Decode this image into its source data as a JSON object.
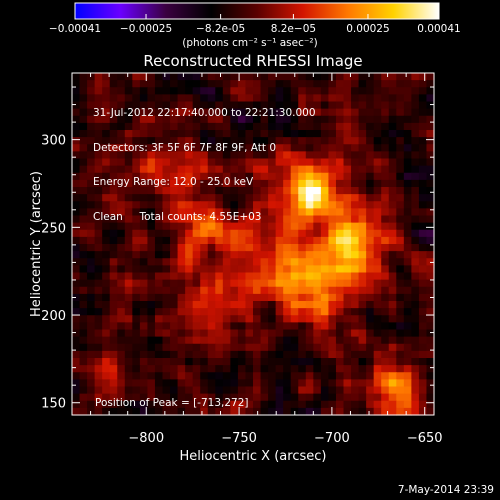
{
  "colorbar": {
    "tick_labels": [
      "-0.00041",
      "-0.00025",
      "-8.2e-05",
      "8.2e-05",
      "0.00025",
      "0.00041"
    ],
    "range": [
      -0.00041,
      0.00041
    ],
    "unit_label": "(photons cm⁻² s⁻¹ asec⁻²)",
    "colors": [
      "#0000ff",
      "#6a00ff",
      "#3a0040",
      "#000000",
      "#5a0000",
      "#d21400",
      "#ff7800",
      "#ffd200",
      "#ffffff"
    ]
  },
  "chart_data": {
    "type": "heatmap",
    "title": "Reconstructed RHESSI Image",
    "xlabel": "Heliocentric X (arcsec)",
    "ylabel": "Heliocentric Y (arcsec)",
    "xlim": [
      -840,
      -645
    ],
    "ylim": [
      143,
      338
    ],
    "xticks": [
      -800,
      -750,
      -700,
      -650
    ],
    "yticks": [
      150,
      200,
      250,
      300
    ],
    "xtick_labels": [
      "−800",
      "−750",
      "−700",
      "−650"
    ],
    "ytick_labels": [
      "150",
      "200",
      "250",
      "300"
    ],
    "peak_position": [
      -713,
      272
    ],
    "sources": [
      {
        "x": -713,
        "y": 272,
        "amp": 1.0,
        "sigma": 12
      },
      {
        "x": -690,
        "y": 240,
        "amp": 0.85,
        "sigma": 14
      },
      {
        "x": -730,
        "y": 228,
        "amp": 0.6,
        "sigma": 15
      },
      {
        "x": -705,
        "y": 212,
        "amp": 0.6,
        "sigma": 13
      },
      {
        "x": -770,
        "y": 250,
        "amp": 0.45,
        "sigma": 13
      },
      {
        "x": -790,
        "y": 280,
        "amp": 0.4,
        "sigma": 14
      },
      {
        "x": -765,
        "y": 205,
        "amp": 0.35,
        "sigma": 14
      },
      {
        "x": -668,
        "y": 158,
        "amp": 0.55,
        "sigma": 10
      },
      {
        "x": -820,
        "y": 168,
        "amp": 0.3,
        "sigma": 10
      }
    ]
  },
  "annotations": {
    "lines": [
      "31-Jul-2012 22:17:40.000 to 22:21:30.000",
      "Detectors: 3F 5F 6F 7F 8F 9F, Att 0",
      "Energy Range: 12.0 - 25.0 keV",
      "Clean     Total counts: 4.55E+03"
    ],
    "peak_text": "Position of Peak = [-713,272]"
  },
  "footer_date": "7-May-2014 23:39"
}
